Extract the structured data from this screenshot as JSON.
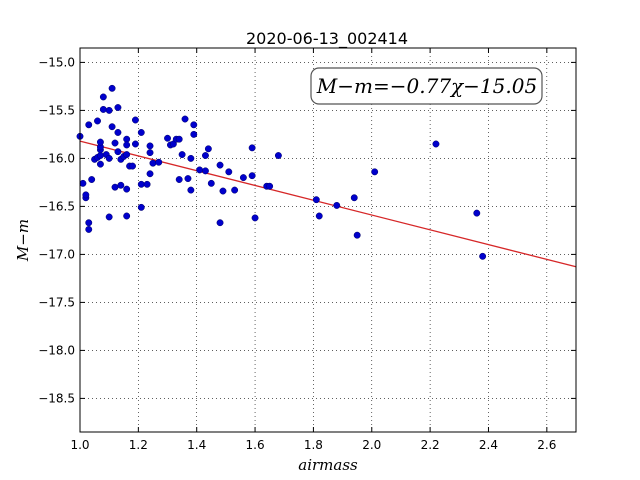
{
  "chart_data": {
    "type": "scatter",
    "title": "2020-06-13_002414",
    "xlabel": "airmass",
    "ylabel": "M−m",
    "xlim": [
      1.0,
      2.7
    ],
    "ylim": [
      -18.85,
      -14.85
    ],
    "y_inverted": true,
    "grid": true,
    "grid_style": "dotted",
    "x_ticks": [
      1.0,
      1.2,
      1.4,
      1.6,
      1.8,
      2.0,
      2.2,
      2.4,
      2.6
    ],
    "x_tick_labels": [
      "1.0",
      "1.2",
      "1.4",
      "1.6",
      "1.8",
      "2.0",
      "2.2",
      "2.4",
      "2.6"
    ],
    "y_ticks": [
      -15.0,
      -15.5,
      -16.0,
      -16.5,
      -17.0,
      -17.5,
      -18.0,
      -18.5
    ],
    "y_tick_labels": [
      "−15.0",
      "−15.5",
      "−16.0",
      "−16.5",
      "−17.0",
      "−17.5",
      "−18.0",
      "−18.5"
    ],
    "annotation": "M−m=−0.77χ−15.05",
    "fit": {
      "slope": -0.77,
      "intercept": -15.05,
      "color": "#d62728"
    },
    "points_color": "#0000cc",
    "points": [
      [
        1.0,
        -15.77
      ],
      [
        1.01,
        -16.26
      ],
      [
        1.02,
        -16.41
      ],
      [
        1.02,
        -16.38
      ],
      [
        1.03,
        -16.67
      ],
      [
        1.03,
        -16.74
      ],
      [
        1.03,
        -15.65
      ],
      [
        1.04,
        -16.22
      ],
      [
        1.05,
        -16.01
      ],
      [
        1.06,
        -15.99
      ],
      [
        1.06,
        -15.61
      ],
      [
        1.07,
        -16.06
      ],
      [
        1.07,
        -15.97
      ],
      [
        1.07,
        -15.91
      ],
      [
        1.07,
        -15.88
      ],
      [
        1.07,
        -15.83
      ],
      [
        1.08,
        -15.49
      ],
      [
        1.08,
        -15.36
      ],
      [
        1.09,
        -15.96
      ],
      [
        1.1,
        -15.5
      ],
      [
        1.1,
        -16.61
      ],
      [
        1.1,
        -16.0
      ],
      [
        1.11,
        -15.67
      ],
      [
        1.11,
        -15.27
      ],
      [
        1.12,
        -15.84
      ],
      [
        1.12,
        -16.3
      ],
      [
        1.13,
        -15.47
      ],
      [
        1.13,
        -15.73
      ],
      [
        1.13,
        -15.93
      ],
      [
        1.14,
        -16.28
      ],
      [
        1.14,
        -16.01
      ],
      [
        1.15,
        -15.98
      ],
      [
        1.16,
        -15.8
      ],
      [
        1.16,
        -15.86
      ],
      [
        1.16,
        -15.96
      ],
      [
        1.16,
        -16.32
      ],
      [
        1.16,
        -16.6
      ],
      [
        1.17,
        -16.08
      ],
      [
        1.18,
        -16.08
      ],
      [
        1.19,
        -15.85
      ],
      [
        1.19,
        -15.6
      ],
      [
        1.21,
        -15.73
      ],
      [
        1.21,
        -16.27
      ],
      [
        1.21,
        -16.51
      ],
      [
        1.23,
        -16.27
      ],
      [
        1.24,
        -15.94
      ],
      [
        1.24,
        -15.87
      ],
      [
        1.24,
        -16.16
      ],
      [
        1.25,
        -16.05
      ],
      [
        1.27,
        -16.04
      ],
      [
        1.3,
        -15.79
      ],
      [
        1.31,
        -15.86
      ],
      [
        1.32,
        -15.85
      ],
      [
        1.33,
        -15.8
      ],
      [
        1.34,
        -15.8
      ],
      [
        1.34,
        -16.22
      ],
      [
        1.35,
        -15.96
      ],
      [
        1.36,
        -15.59
      ],
      [
        1.37,
        -16.21
      ],
      [
        1.38,
        -16.0
      ],
      [
        1.38,
        -16.33
      ],
      [
        1.39,
        -15.65
      ],
      [
        1.39,
        -15.75
      ],
      [
        1.41,
        -16.12
      ],
      [
        1.43,
        -16.13
      ],
      [
        1.43,
        -15.97
      ],
      [
        1.44,
        -15.9
      ],
      [
        1.45,
        -16.26
      ],
      [
        1.48,
        -16.07
      ],
      [
        1.48,
        -16.67
      ],
      [
        1.49,
        -16.34
      ],
      [
        1.51,
        -16.14
      ],
      [
        1.53,
        -16.33
      ],
      [
        1.56,
        -16.2
      ],
      [
        1.59,
        -16.18
      ],
      [
        1.59,
        -15.89
      ],
      [
        1.6,
        -16.62
      ],
      [
        1.64,
        -16.29
      ],
      [
        1.65,
        -16.29
      ],
      [
        1.68,
        -15.97
      ],
      [
        1.81,
        -16.43
      ],
      [
        1.82,
        -16.6
      ],
      [
        1.88,
        -16.49
      ],
      [
        1.94,
        -16.41
      ],
      [
        1.95,
        -16.8
      ],
      [
        2.01,
        -16.14
      ],
      [
        2.22,
        -15.85
      ],
      [
        2.36,
        -16.57
      ],
      [
        2.38,
        -17.02
      ]
    ]
  }
}
